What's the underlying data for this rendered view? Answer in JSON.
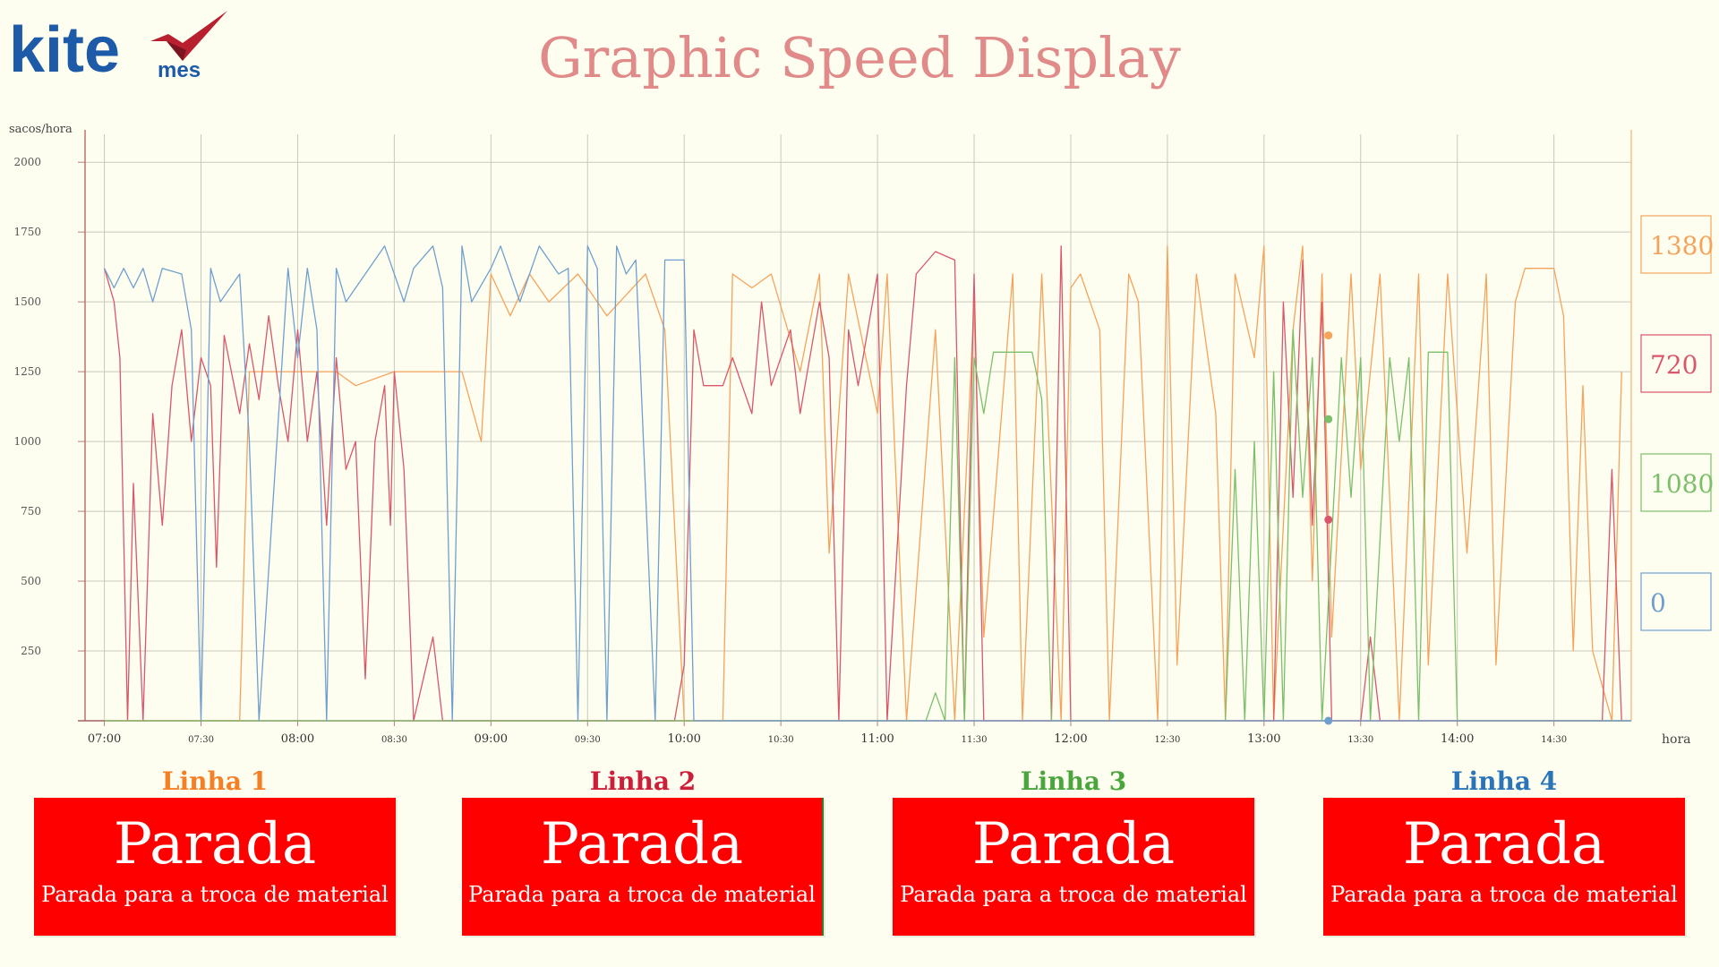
{
  "logo": {
    "word": "kite",
    "sub": "mes",
    "icon": "red-check-mark"
  },
  "header": {
    "title": "Graphic Speed Display"
  },
  "colors": {
    "line1": "#f5a35c",
    "line2": "#d9566b",
    "line3": "#7cbf6a",
    "line4": "#6f9fcf",
    "status_bg": "#ff0000"
  },
  "chart_data": {
    "type": "line",
    "title": "",
    "ylabel": "sacos/hora",
    "xlabel": "hora",
    "ylim": [
      0,
      2100
    ],
    "yticks": [
      250,
      500,
      750,
      1000,
      1250,
      1500,
      1750,
      2000
    ],
    "x_ticks": [
      "07:00",
      "07:30",
      "08:00",
      "08:30",
      "09:00",
      "09:30",
      "10:00",
      "10:30",
      "11:00",
      "11:30",
      "12:00",
      "12:30",
      "13:00",
      "13:30",
      "14:00",
      "14:30"
    ],
    "x_range_hours": [
      6.9,
      14.9
    ],
    "series": [
      {
        "line": "Linha 1",
        "color": "#f5a35c",
        "current_value": "1380",
        "points": [
          [
            7.0,
            0
          ],
          [
            7.7,
            0
          ],
          [
            7.75,
            1250
          ],
          [
            8.2,
            1250
          ],
          [
            8.3,
            1200
          ],
          [
            8.5,
            1250
          ],
          [
            8.85,
            1250
          ],
          [
            8.95,
            1000
          ],
          [
            9.0,
            1600
          ],
          [
            9.1,
            1450
          ],
          [
            9.2,
            1600
          ],
          [
            9.3,
            1500
          ],
          [
            9.45,
            1600
          ],
          [
            9.6,
            1450
          ],
          [
            9.8,
            1600
          ],
          [
            9.9,
            1400
          ],
          [
            10.0,
            0
          ],
          [
            10.2,
            0
          ],
          [
            10.25,
            1600
          ],
          [
            10.35,
            1550
          ],
          [
            10.45,
            1600
          ],
          [
            10.6,
            1250
          ],
          [
            10.7,
            1600
          ],
          [
            10.75,
            600
          ],
          [
            10.85,
            1600
          ],
          [
            11.0,
            1100
          ],
          [
            11.05,
            1600
          ],
          [
            11.15,
            0
          ],
          [
            11.3,
            1400
          ],
          [
            11.4,
            0
          ],
          [
            11.5,
            1500
          ],
          [
            11.55,
            300
          ],
          [
            11.7,
            1600
          ],
          [
            11.75,
            0
          ],
          [
            11.85,
            1600
          ],
          [
            11.95,
            0
          ],
          [
            12.0,
            1550
          ],
          [
            12.05,
            1600
          ],
          [
            12.15,
            1400
          ],
          [
            12.2,
            0
          ],
          [
            12.3,
            1600
          ],
          [
            12.35,
            1500
          ],
          [
            12.45,
            0
          ],
          [
            12.5,
            1700
          ],
          [
            12.55,
            200
          ],
          [
            12.65,
            1600
          ],
          [
            12.75,
            1100
          ],
          [
            12.8,
            0
          ],
          [
            12.85,
            1600
          ],
          [
            12.95,
            1300
          ],
          [
            13.0,
            1700
          ],
          [
            13.05,
            0
          ],
          [
            13.15,
            1400
          ],
          [
            13.2,
            1700
          ],
          [
            13.25,
            500
          ],
          [
            13.3,
            1600
          ],
          [
            13.35,
            300
          ],
          [
            13.45,
            1600
          ],
          [
            13.5,
            900
          ],
          [
            13.6,
            1600
          ],
          [
            13.7,
            0
          ],
          [
            13.8,
            1600
          ],
          [
            13.85,
            200
          ],
          [
            13.95,
            1600
          ],
          [
            14.05,
            600
          ],
          [
            14.15,
            1600
          ],
          [
            14.2,
            200
          ],
          [
            14.3,
            1500
          ],
          [
            14.35,
            1620
          ],
          [
            14.5,
            1620
          ],
          [
            14.55,
            1450
          ],
          [
            14.6,
            250
          ],
          [
            14.65,
            1200
          ],
          [
            14.7,
            250
          ],
          [
            14.8,
            0
          ],
          [
            14.85,
            1250
          ]
        ]
      },
      {
        "line": "Linha 2",
        "color": "#d9566b",
        "current_value": "720",
        "points": [
          [
            7.0,
            1620
          ],
          [
            7.05,
            1500
          ],
          [
            7.08,
            1300
          ],
          [
            7.12,
            0
          ],
          [
            7.15,
            850
          ],
          [
            7.2,
            0
          ],
          [
            7.25,
            1100
          ],
          [
            7.3,
            700
          ],
          [
            7.35,
            1200
          ],
          [
            7.4,
            1400
          ],
          [
            7.45,
            1000
          ],
          [
            7.5,
            1300
          ],
          [
            7.55,
            1200
          ],
          [
            7.58,
            550
          ],
          [
            7.62,
            1380
          ],
          [
            7.7,
            1100
          ],
          [
            7.75,
            1350
          ],
          [
            7.8,
            1150
          ],
          [
            7.85,
            1450
          ],
          [
            7.9,
            1200
          ],
          [
            7.95,
            1000
          ],
          [
            8.0,
            1400
          ],
          [
            8.05,
            1000
          ],
          [
            8.1,
            1250
          ],
          [
            8.15,
            700
          ],
          [
            8.2,
            1300
          ],
          [
            8.25,
            900
          ],
          [
            8.3,
            1000
          ],
          [
            8.35,
            150
          ],
          [
            8.4,
            1000
          ],
          [
            8.45,
            1200
          ],
          [
            8.48,
            700
          ],
          [
            8.5,
            1250
          ],
          [
            8.55,
            900
          ],
          [
            8.6,
            0
          ],
          [
            8.7,
            300
          ],
          [
            8.75,
            0
          ],
          [
            9.95,
            0
          ],
          [
            10.0,
            200
          ],
          [
            10.05,
            1400
          ],
          [
            10.1,
            1200
          ],
          [
            10.2,
            1200
          ],
          [
            10.25,
            1300
          ],
          [
            10.35,
            1100
          ],
          [
            10.4,
            1500
          ],
          [
            10.45,
            1200
          ],
          [
            10.55,
            1400
          ],
          [
            10.6,
            1100
          ],
          [
            10.7,
            1500
          ],
          [
            10.75,
            1300
          ],
          [
            10.8,
            0
          ],
          [
            10.85,
            1400
          ],
          [
            10.9,
            1200
          ],
          [
            11.0,
            1600
          ],
          [
            11.05,
            0
          ],
          [
            11.15,
            1200
          ],
          [
            11.2,
            1600
          ],
          [
            11.3,
            1680
          ],
          [
            11.4,
            1650
          ],
          [
            11.45,
            0
          ],
          [
            11.5,
            1600
          ],
          [
            11.55,
            0
          ],
          [
            11.9,
            0
          ],
          [
            11.95,
            1700
          ],
          [
            12.0,
            0
          ],
          [
            13.05,
            0
          ],
          [
            13.1,
            1500
          ],
          [
            13.15,
            800
          ],
          [
            13.2,
            1650
          ],
          [
            13.25,
            700
          ],
          [
            13.3,
            1500
          ],
          [
            13.35,
            0
          ],
          [
            13.5,
            0
          ],
          [
            13.55,
            300
          ],
          [
            13.6,
            0
          ],
          [
            14.75,
            0
          ],
          [
            14.8,
            900
          ],
          [
            14.85,
            0
          ]
        ]
      },
      {
        "line": "Linha 3",
        "color": "#7cbf6a",
        "current_value": "1080",
        "points": [
          [
            7.0,
            0
          ],
          [
            11.25,
            0
          ],
          [
            11.3,
            100
          ],
          [
            11.35,
            0
          ],
          [
            11.4,
            1300
          ],
          [
            11.45,
            0
          ],
          [
            11.5,
            1300
          ],
          [
            11.55,
            1100
          ],
          [
            11.6,
            1320
          ],
          [
            11.8,
            1320
          ],
          [
            11.85,
            1150
          ],
          [
            11.9,
            0
          ],
          [
            12.8,
            0
          ],
          [
            12.85,
            900
          ],
          [
            12.9,
            0
          ],
          [
            12.95,
            1000
          ],
          [
            13.0,
            0
          ],
          [
            13.05,
            1250
          ],
          [
            13.1,
            0
          ],
          [
            13.15,
            1400
          ],
          [
            13.2,
            800
          ],
          [
            13.25,
            1300
          ],
          [
            13.3,
            0
          ],
          [
            13.4,
            1300
          ],
          [
            13.45,
            800
          ],
          [
            13.5,
            1300
          ],
          [
            13.55,
            0
          ],
          [
            13.65,
            1300
          ],
          [
            13.7,
            1000
          ],
          [
            13.75,
            1300
          ],
          [
            13.8,
            0
          ],
          [
            13.85,
            1320
          ],
          [
            13.95,
            1320
          ],
          [
            14.0,
            0
          ],
          [
            14.9,
            0
          ]
        ]
      },
      {
        "line": "Linha 4",
        "color": "#6f9fcf",
        "current_value": "0",
        "points": [
          [
            7.0,
            1620
          ],
          [
            7.05,
            1550
          ],
          [
            7.1,
            1620
          ],
          [
            7.15,
            1550
          ],
          [
            7.2,
            1620
          ],
          [
            7.25,
            1500
          ],
          [
            7.3,
            1620
          ],
          [
            7.4,
            1600
          ],
          [
            7.45,
            1400
          ],
          [
            7.5,
            0
          ],
          [
            7.55,
            1620
          ],
          [
            7.6,
            1500
          ],
          [
            7.7,
            1600
          ],
          [
            7.75,
            1000
          ],
          [
            7.8,
            0
          ],
          [
            7.95,
            1620
          ],
          [
            8.0,
            1300
          ],
          [
            8.05,
            1620
          ],
          [
            8.1,
            1400
          ],
          [
            8.15,
            0
          ],
          [
            8.2,
            1620
          ],
          [
            8.25,
            1500
          ],
          [
            8.35,
            1600
          ],
          [
            8.45,
            1700
          ],
          [
            8.55,
            1500
          ],
          [
            8.6,
            1620
          ],
          [
            8.7,
            1700
          ],
          [
            8.75,
            1550
          ],
          [
            8.8,
            0
          ],
          [
            8.85,
            1700
          ],
          [
            8.9,
            1500
          ],
          [
            9.0,
            1620
          ],
          [
            9.05,
            1700
          ],
          [
            9.15,
            1500
          ],
          [
            9.25,
            1700
          ],
          [
            9.35,
            1600
          ],
          [
            9.4,
            1620
          ],
          [
            9.45,
            0
          ],
          [
            9.5,
            1700
          ],
          [
            9.55,
            1620
          ],
          [
            9.6,
            0
          ],
          [
            9.65,
            1700
          ],
          [
            9.7,
            1600
          ],
          [
            9.75,
            1650
          ],
          [
            9.85,
            0
          ],
          [
            9.9,
            1650
          ],
          [
            10.0,
            1650
          ],
          [
            10.05,
            0
          ],
          [
            14.9,
            0
          ]
        ]
      }
    ]
  },
  "right_legend": [
    {
      "value": "1380",
      "color": "#f5a35c"
    },
    {
      "value": "720",
      "color": "#d9566b"
    },
    {
      "value": "1080",
      "color": "#7cbf6a"
    },
    {
      "value": "0",
      "color": "#6f9fcf"
    }
  ],
  "lines": [
    {
      "label": "Linha 1",
      "color": "#f57f25",
      "status": "Parada",
      "reason": "Parada para a troca de material"
    },
    {
      "label": "Linha 2",
      "color": "#cc1f3a",
      "status": "Parada",
      "reason": "Parada para a troca de material"
    },
    {
      "label": "Linha 3",
      "color": "#4aa63c",
      "status": "Parada",
      "reason": "Parada para a troca de material"
    },
    {
      "label": "Linha 4",
      "color": "#2a74b8",
      "status": "Parada",
      "reason": "Parada para a troca de material"
    }
  ]
}
